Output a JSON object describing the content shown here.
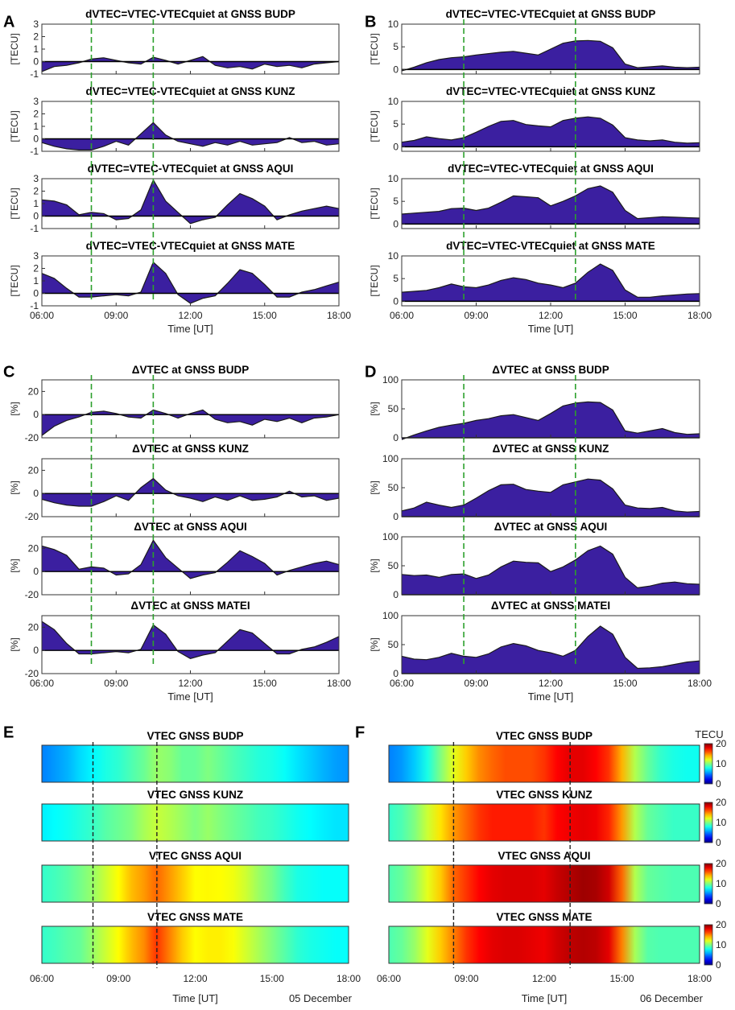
{
  "colors": {
    "fill": "#3b1fa0",
    "stroke": "#1a1a1a",
    "guide_green": "#2ca02c",
    "guide_black": "#222222"
  },
  "x_ticks": [
    "06:00",
    "09:00",
    "12:00",
    "15:00",
    "18:00"
  ],
  "x_label": "Time [UT]",
  "heat_dates": [
    "05 December",
    "06 December"
  ],
  "colorbar": {
    "title": "TECU",
    "ticks": [
      "20",
      "10",
      "0"
    ]
  },
  "chart_data": [
    {
      "id": "A",
      "letter": "A",
      "type": "area",
      "ylabel": "[TECU]",
      "ylim": [
        -1,
        3
      ],
      "yticks": [
        "3",
        "2",
        "1",
        "0",
        "-1"
      ],
      "guides_hours": [
        8.0,
        10.5
      ],
      "x_hours": [
        6,
        6.5,
        7,
        7.5,
        8,
        8.5,
        9,
        9.5,
        10,
        10.5,
        11,
        11.5,
        12,
        12.5,
        13,
        13.5,
        14,
        14.5,
        15,
        15.5,
        16,
        16.5,
        17,
        17.5,
        18
      ],
      "series": [
        {
          "name": "dVTEC=VTEC-VTECquiet at GNSS BUDP",
          "values": [
            -0.8,
            -0.4,
            -0.3,
            -0.1,
            0.2,
            0.3,
            0.1,
            -0.1,
            -0.2,
            0.35,
            0.1,
            -0.2,
            0.1,
            0.4,
            -0.3,
            -0.5,
            -0.4,
            -0.6,
            -0.2,
            -0.4,
            -0.3,
            -0.5,
            -0.2,
            -0.1,
            0.0
          ]
        },
        {
          "name": "dVTEC=VTEC-VTECquiet at GNSS KUNZ",
          "values": [
            -0.3,
            -0.6,
            -0.8,
            -0.9,
            -0.9,
            -0.6,
            -0.2,
            -0.5,
            0.4,
            1.3,
            0.3,
            -0.2,
            -0.4,
            -0.6,
            -0.3,
            -0.5,
            -0.2,
            -0.5,
            -0.4,
            -0.3,
            0.1,
            -0.3,
            -0.2,
            -0.5,
            -0.4
          ]
        },
        {
          "name": "dVTEC=VTEC-VTECquiet at GNSS AQUI",
          "values": [
            1.3,
            1.2,
            0.9,
            0.1,
            0.3,
            0.2,
            -0.3,
            -0.2,
            0.5,
            2.9,
            1.2,
            0.3,
            -0.6,
            -0.3,
            -0.1,
            0.9,
            1.8,
            1.4,
            0.8,
            -0.3,
            0.1,
            0.4,
            0.6,
            0.8,
            0.6
          ]
        },
        {
          "name": "dVTEC=VTEC-VTECquiet at GNSS MATE",
          "values": [
            1.6,
            1.2,
            0.4,
            -0.3,
            -0.3,
            -0.2,
            -0.1,
            -0.2,
            0.1,
            2.5,
            1.6,
            -0.1,
            -0.8,
            -0.4,
            -0.2,
            0.8,
            1.9,
            1.6,
            0.7,
            -0.3,
            -0.3,
            0.1,
            0.3,
            0.6,
            0.9
          ]
        }
      ]
    },
    {
      "id": "B",
      "letter": "B",
      "type": "area",
      "ylabel": "[TECU]",
      "ylim": [
        -1,
        10
      ],
      "yticks": [
        "10",
        "5",
        "0"
      ],
      "guides_hours": [
        8.5,
        13.0
      ],
      "x_hours": [
        6,
        6.5,
        7,
        7.5,
        8,
        8.5,
        9,
        9.5,
        10,
        10.5,
        11,
        11.5,
        12,
        12.5,
        13,
        13.5,
        14,
        14.5,
        15,
        15.5,
        16,
        16.5,
        17,
        17.5,
        18
      ],
      "series": [
        {
          "name": "dVTEC=VTEC-VTECquiet at GNSS BUDP",
          "values": [
            -0.3,
            0.5,
            1.5,
            2.2,
            2.6,
            2.8,
            3.2,
            3.5,
            3.8,
            4.0,
            3.6,
            3.2,
            4.5,
            5.8,
            6.3,
            6.4,
            6.2,
            4.8,
            1.2,
            0.4,
            0.6,
            0.8,
            0.5,
            0.4,
            0.5
          ]
        },
        {
          "name": "dVTEC=VTEC-VTECquiet at GNSS KUNZ",
          "values": [
            1.0,
            1.4,
            2.2,
            1.8,
            1.5,
            2.0,
            3.2,
            4.5,
            5.6,
            5.8,
            4.9,
            4.6,
            4.4,
            5.8,
            6.3,
            6.6,
            6.3,
            4.8,
            2.0,
            1.5,
            1.3,
            1.5,
            1.0,
            0.8,
            0.9
          ]
        },
        {
          "name": "dVTEC=VTEC-VTECquiet at GNSS AQUI",
          "values": [
            2.2,
            2.4,
            2.6,
            2.8,
            3.4,
            3.5,
            3.0,
            3.5,
            4.8,
            6.2,
            6.0,
            5.8,
            4.0,
            5.0,
            6.2,
            7.8,
            8.4,
            7.0,
            3.0,
            1.2,
            1.4,
            1.6,
            1.5,
            1.4,
            1.3
          ]
        },
        {
          "name": "dVTEC=VTEC-VTECquiet at GNSS MATE",
          "values": [
            2.0,
            2.2,
            2.4,
            3.0,
            3.8,
            3.2,
            3.0,
            3.6,
            4.6,
            5.2,
            4.8,
            4.0,
            3.6,
            3.0,
            4.0,
            6.4,
            8.2,
            6.8,
            2.5,
            0.9,
            0.9,
            1.2,
            1.4,
            1.6,
            1.7
          ]
        }
      ]
    },
    {
      "id": "C",
      "letter": "C",
      "type": "area",
      "ylabel": "[%]",
      "ylim": [
        -20,
        30
      ],
      "yticks": [
        "20",
        "0",
        "-20"
      ],
      "guides_hours": [
        8.0,
        10.5
      ],
      "x_hours": [
        6,
        6.5,
        7,
        7.5,
        8,
        8.5,
        9,
        9.5,
        10,
        10.5,
        11,
        11.5,
        12,
        12.5,
        13,
        13.5,
        14,
        14.5,
        15,
        15.5,
        16,
        16.5,
        17,
        17.5,
        18
      ],
      "series": [
        {
          "name": "ΔVTEC at GNSS BUDP",
          "values": [
            -18,
            -10,
            -5,
            -2,
            2,
            3,
            1,
            -2,
            -3,
            4,
            1,
            -3,
            1,
            4,
            -4,
            -7,
            -6,
            -9,
            -4,
            -6,
            -3,
            -7,
            -3,
            -2,
            0
          ]
        },
        {
          "name": "ΔVTEC at GNSS KUNZ",
          "values": [
            -5,
            -8,
            -10,
            -11,
            -11,
            -7,
            -2,
            -6,
            5,
            13,
            3,
            -2,
            -4,
            -7,
            -3,
            -6,
            -2,
            -6,
            -5,
            -3,
            2,
            -3,
            -2,
            -6,
            -4
          ]
        },
        {
          "name": "ΔVTEC at GNSS AQUI",
          "values": [
            22,
            19,
            14,
            2,
            4,
            3,
            -3,
            -2,
            6,
            27,
            12,
            3,
            -6,
            -3,
            -1,
            8,
            18,
            13,
            7,
            -3,
            1,
            4,
            7,
            9,
            6
          ]
        },
        {
          "name": "ΔVTEC at GNSS MATEI",
          "values": [
            25,
            18,
            6,
            -3,
            -3,
            -2,
            -1,
            -2,
            1,
            22,
            14,
            -1,
            -7,
            -4,
            -2,
            8,
            18,
            15,
            6,
            -3,
            -3,
            1,
            3,
            7,
            12
          ]
        }
      ]
    },
    {
      "id": "D",
      "letter": "D",
      "type": "area",
      "ylabel": "[%]",
      "ylim": [
        0,
        100
      ],
      "yticks": [
        "100",
        "50",
        "0"
      ],
      "guides_hours": [
        8.5,
        13.0
      ],
      "x_hours": [
        6,
        6.5,
        7,
        7.5,
        8,
        8.5,
        9,
        9.5,
        10,
        10.5,
        11,
        11.5,
        12,
        12.5,
        13,
        13.5,
        14,
        14.5,
        15,
        15.5,
        16,
        16.5,
        17,
        17.5,
        18
      ],
      "series": [
        {
          "name": "ΔVTEC at GNSS BUDP",
          "values": [
            -3,
            5,
            12,
            18,
            22,
            25,
            30,
            33,
            38,
            40,
            35,
            30,
            42,
            55,
            60,
            62,
            61,
            48,
            12,
            8,
            12,
            16,
            9,
            6,
            7
          ]
        },
        {
          "name": "ΔVTEC at GNSS KUNZ",
          "values": [
            10,
            15,
            25,
            20,
            16,
            20,
            32,
            45,
            55,
            56,
            47,
            44,
            42,
            55,
            60,
            65,
            63,
            48,
            20,
            15,
            14,
            16,
            10,
            8,
            9
          ]
        },
        {
          "name": "ΔVTEC at GNSS AQUI",
          "values": [
            35,
            33,
            34,
            30,
            35,
            36,
            28,
            34,
            48,
            58,
            56,
            55,
            40,
            48,
            60,
            76,
            84,
            70,
            30,
            12,
            15,
            20,
            22,
            19,
            18
          ]
        },
        {
          "name": "ΔVTEC at GNSS MATEI",
          "values": [
            30,
            25,
            24,
            28,
            35,
            30,
            28,
            34,
            46,
            52,
            48,
            40,
            36,
            30,
            40,
            64,
            82,
            68,
            28,
            9,
            10,
            12,
            16,
            20,
            22
          ]
        }
      ]
    },
    {
      "id": "E",
      "letter": "E",
      "type": "heatmap",
      "zlim": [
        0,
        20
      ],
      "guides_hours": [
        8.0,
        10.5
      ],
      "x_hours": [
        6,
        6.5,
        7,
        7.5,
        8,
        8.5,
        9,
        9.5,
        10,
        10.5,
        11,
        11.5,
        12,
        12.5,
        13,
        13.5,
        14,
        14.5,
        15,
        15.5,
        16,
        16.5,
        17,
        17.5,
        18
      ],
      "series": [
        {
          "name": "VTEC GNSS BUDP",
          "values": [
            5,
            5.5,
            6,
            6.8,
            7.4,
            8,
            8.4,
            9,
            9.6,
            10.5,
            10.2,
            9.5,
            9.5,
            10,
            9.5,
            9,
            8.6,
            8.2,
            8,
            7.6,
            7,
            6.5,
            6,
            5.6,
            5.4
          ]
        },
        {
          "name": "VTEC GNSS KUNZ",
          "values": [
            7.2,
            7.5,
            7.8,
            8.2,
            8.6,
            9.2,
            9.6,
            10,
            10.8,
            11.4,
            11,
            10.5,
            10,
            10.5,
            10,
            9.6,
            9.2,
            8.8,
            8.6,
            8.2,
            7.8,
            7.5,
            7.2,
            7,
            7
          ]
        },
        {
          "name": "VTEC GNSS AQUI",
          "values": [
            8.5,
            8.8,
            9.2,
            9.8,
            10.5,
            11.5,
            12.5,
            13.8,
            14.5,
            15.5,
            14.5,
            13.5,
            12.5,
            12.6,
            12.5,
            12.2,
            11.5,
            10.5,
            9.8,
            8.8,
            8,
            7.8,
            7.6,
            7.6,
            7.6
          ]
        },
        {
          "name": "VTEC GNSS MATE",
          "values": [
            8.5,
            8.8,
            9.2,
            9.5,
            10.5,
            11.5,
            12.5,
            13.8,
            14.8,
            16.5,
            15,
            13.5,
            12.5,
            12.8,
            12.8,
            12.4,
            11.6,
            10.8,
            10,
            9.2,
            8.4,
            8,
            7.8,
            7.6,
            7.6
          ]
        }
      ]
    },
    {
      "id": "F",
      "letter": "F",
      "type": "heatmap",
      "zlim": [
        0,
        20
      ],
      "guides_hours": [
        8.5,
        13.0
      ],
      "x_hours": [
        6,
        6.5,
        7,
        7.5,
        8,
        8.5,
        9,
        9.5,
        10,
        10.5,
        11,
        11.5,
        12,
        12.5,
        13,
        13.5,
        14,
        14.5,
        15,
        15.5,
        16,
        16.5,
        17,
        17.5,
        18
      ],
      "series": [
        {
          "name": "VTEC GNSS BUDP",
          "values": [
            5,
            5.5,
            6.5,
            8,
            10,
            12,
            13.5,
            14.8,
            15.5,
            16,
            16,
            16,
            16.5,
            17.5,
            18,
            18,
            17.5,
            16.5,
            14,
            11,
            9.5,
            8.5,
            8,
            7.8,
            7.8
          ]
        },
        {
          "name": "VTEC GNSS KUNZ",
          "values": [
            8.5,
            9,
            10,
            11.5,
            13,
            14.5,
            15.5,
            16.5,
            17,
            17,
            17,
            17,
            16.5,
            17.5,
            17.8,
            18,
            17.8,
            16.8,
            14.5,
            11,
            9.5,
            9,
            8.6,
            8.6,
            8.6
          ]
        },
        {
          "name": "VTEC GNSS AQUI",
          "values": [
            9,
            9.5,
            10.5,
            12,
            13.5,
            15.5,
            16.5,
            17.5,
            18,
            18.2,
            18.2,
            18.2,
            18,
            18.6,
            19,
            19.4,
            19.2,
            18.4,
            15.5,
            11,
            9.5,
            9.2,
            9,
            9,
            9
          ]
        },
        {
          "name": "VTEC GNSS MATE",
          "values": [
            9,
            9.5,
            10.5,
            12,
            13.5,
            15,
            16.5,
            17.5,
            18,
            18.2,
            18.2,
            18,
            17.8,
            18.4,
            18.8,
            19,
            18.8,
            18,
            15,
            10.8,
            9.2,
            9,
            9,
            9,
            9
          ]
        }
      ]
    }
  ]
}
